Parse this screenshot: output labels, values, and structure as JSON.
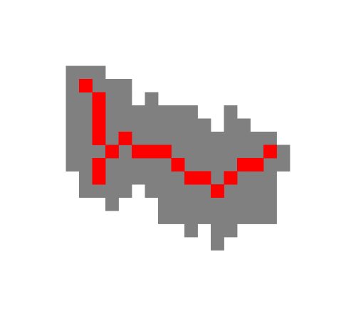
{
  "colors": {
    "background": "#ffffff",
    "grid_cell": "#808080",
    "path_cell": "#ff0000"
  },
  "grid": {
    "rows": [
      {
        "row": 5,
        "gray": [
          [
            5,
            7
          ]
        ]
      },
      {
        "row": 6,
        "gray": [
          [
            5,
            9
          ]
        ],
        "red": [
          6
        ]
      },
      {
        "row": 7,
        "gray": [
          [
            5,
            9
          ],
          [
            11,
            11
          ]
        ],
        "red": [
          7
        ]
      },
      {
        "row": 8,
        "gray": [
          [
            5,
            14
          ],
          [
            17,
            17
          ]
        ],
        "red": [
          7
        ]
      },
      {
        "row": 9,
        "gray": [
          [
            5,
            15
          ],
          [
            17,
            18
          ]
        ],
        "red": [
          7
        ]
      },
      {
        "row": 10,
        "gray": [
          [
            5,
            20
          ]
        ],
        "red": [
          7,
          9
        ]
      },
      {
        "row": 11,
        "gray": [
          [
            5,
            21
          ]
        ],
        "red": [
          8,
          10,
          11,
          12,
          20
        ]
      },
      {
        "row": 12,
        "gray": [
          [
            5,
            21
          ]
        ],
        "red": [
          7,
          13,
          18,
          19
        ]
      },
      {
        "row": 13,
        "gray": [
          [
            6,
            20
          ]
        ],
        "red": [
          7,
          14,
          15,
          17
        ]
      },
      {
        "row": 14,
        "gray": [
          [
            6,
            9
          ],
          [
            11,
            20
          ]
        ],
        "red": [
          16
        ]
      },
      {
        "row": 15,
        "gray": [
          [
            8,
            8
          ],
          [
            12,
            20
          ]
        ]
      },
      {
        "row": 16,
        "gray": [
          [
            12,
            20
          ]
        ]
      },
      {
        "row": 17,
        "gray": [
          [
            14,
            14
          ],
          [
            16,
            17
          ]
        ]
      },
      {
        "row": 18,
        "gray": [
          [
            16,
            16
          ]
        ]
      }
    ]
  }
}
